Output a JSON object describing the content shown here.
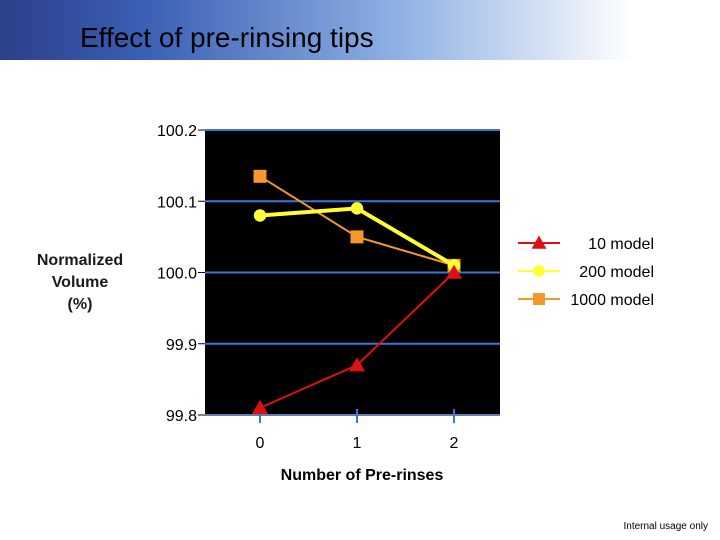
{
  "slide": {
    "title": "Effect of pre-rinsing tips",
    "footer": "Internal usage only"
  },
  "chart_data": {
    "type": "line",
    "xlabel": "Number of Pre-rinses",
    "ylabel": [
      "Normalized",
      "Volume",
      "(%)"
    ],
    "x": [
      0,
      1,
      2
    ],
    "x_tick_labels": [
      "0",
      "1",
      "2"
    ],
    "ylim": [
      99.8,
      100.2
    ],
    "y_ticks": [
      100.2,
      100.1,
      100.0,
      99.9,
      99.8
    ],
    "y_tick_labels": [
      "100.2",
      "100.1",
      "100.0",
      "99.9",
      "99.8"
    ],
    "grid": true,
    "legend_position": "right",
    "plot_background": "#000000",
    "series": [
      {
        "name": "10 model",
        "values": [
          99.81,
          99.87,
          100.0
        ],
        "color": "#dd1111",
        "marker": "triangle"
      },
      {
        "name": "200 model",
        "values": [
          100.08,
          100.09,
          100.01
        ],
        "color": "#ffff33",
        "marker": "circle"
      },
      {
        "name": "1000 model",
        "values": [
          100.135,
          100.05,
          100.01
        ],
        "color": "#f5972a",
        "marker": "square"
      }
    ]
  }
}
